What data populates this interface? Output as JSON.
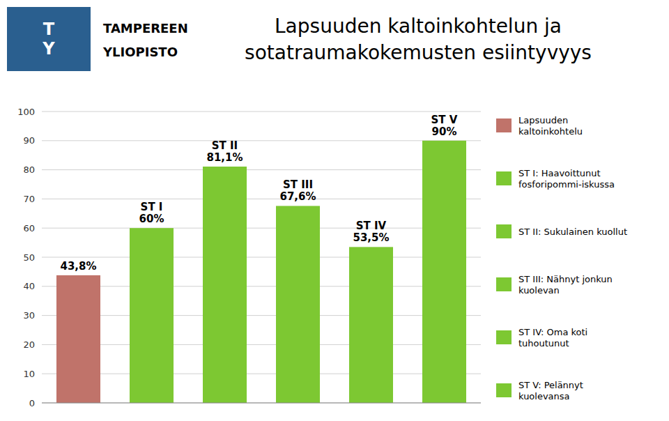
{
  "chart_data": {
    "type": "bar",
    "title": "Lapsuuden kaltoinkohtelun ja\nsotatraumakokemusten esiintyvyys",
    "annotations": [
      "T\nY",
      "TAMPEREEN",
      "YLIOPISTO"
    ],
    "categories": [
      "Lapsuuden\nkaltoinkohtelu",
      "ST I: Haavoittunut\nfosforipommi-iskussa",
      "ST II: Sukulainen kuollut",
      "ST III: Nähnyt jonkun\nkuolevan",
      "ST IV: Oma koti\ntuhoutunut",
      "ST V: Pelännyt\nkuolevansa"
    ],
    "values": [
      43.8,
      60.0,
      81.1,
      67.6,
      53.5,
      90.0
    ],
    "value_labels": [
      "43,8%",
      "ST I\n60%",
      "ST II\n81,1%",
      "ST III\n67,6%",
      "ST IV\n53,5%",
      "ST V\n90%"
    ],
    "data_labels": true,
    "colors": [
      "#c0736a",
      "#7dc832",
      "#7dc832",
      "#7dc832",
      "#7dc832",
      "#7dc832"
    ],
    "ylim": [
      0,
      100
    ],
    "yticks": [
      0,
      10,
      20,
      30,
      40,
      50,
      60,
      70,
      80,
      90,
      100
    ],
    "grid": true,
    "legend": "right",
    "tick_labels": "y"
  }
}
